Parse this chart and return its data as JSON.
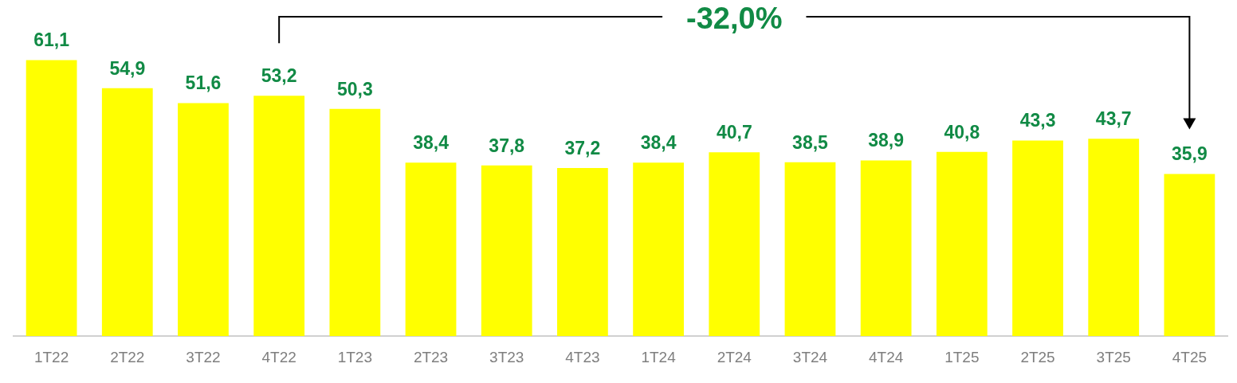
{
  "chart_data": {
    "type": "bar",
    "categories": [
      "1T22",
      "2T22",
      "3T22",
      "4T22",
      "1T23",
      "2T23",
      "3T23",
      "4T23",
      "1T24",
      "2T24",
      "3T24",
      "4T24",
      "1T25",
      "2T25",
      "3T25",
      "4T25"
    ],
    "values": [
      61.1,
      54.9,
      51.6,
      53.2,
      50.3,
      38.4,
      37.8,
      37.2,
      38.4,
      40.7,
      38.5,
      38.9,
      40.8,
      43.3,
      43.7,
      35.9
    ],
    "color": "#ffff00",
    "value_labels": [
      "61,1",
      "54,9",
      "51,6",
      "53,2",
      "50,3",
      "38,4",
      "37,8",
      "37,2",
      "38,4",
      "40,7",
      "38,5",
      "38,9",
      "40,8",
      "43,3",
      "43,7",
      "35,9"
    ],
    "grid": false,
    "legend": false,
    "tick_labels": "x",
    "annotations": [
      "-32,0%"
    ]
  }
}
